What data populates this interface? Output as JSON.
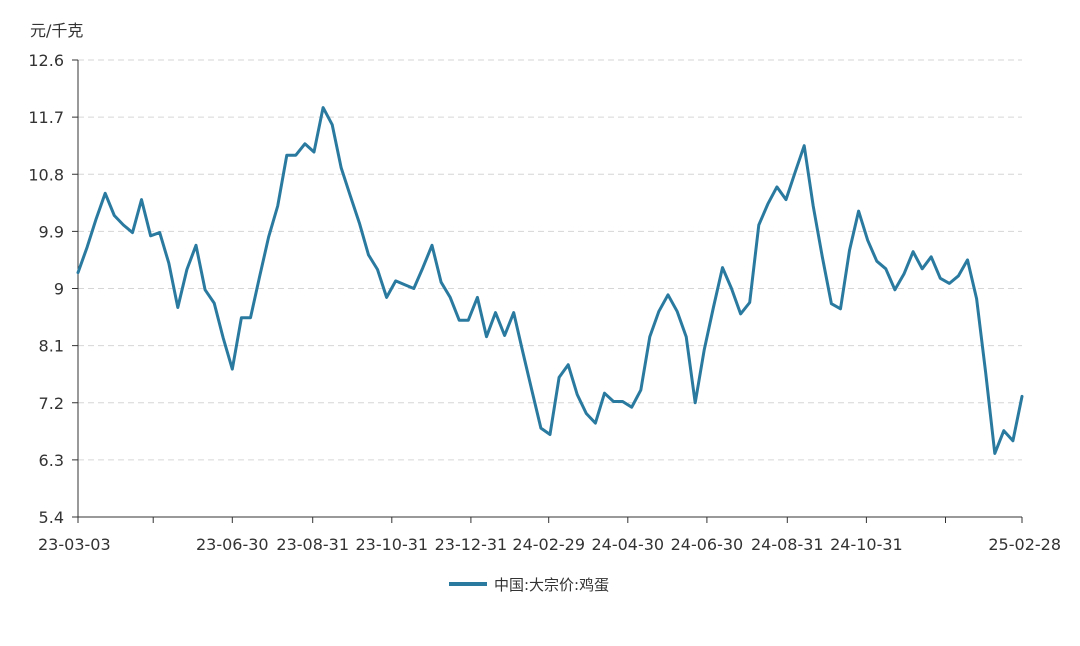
{
  "chart_data": {
    "type": "line",
    "unit_label": "元/千克",
    "y_ticks": [
      "12.6",
      "11.7",
      "10.8",
      "9.9",
      "9",
      "8.1",
      "7.2",
      "6.3",
      "5.4"
    ],
    "ylim": [
      5.4,
      12.6
    ],
    "x_range": [
      "2023-03-03",
      "2025-02-28"
    ],
    "x_tick_labels": [
      {
        "date": "2023-03-03",
        "label": "23-03-03"
      },
      {
        "date": "2023-06-30",
        "label": "23-06-30"
      },
      {
        "date": "2023-08-31",
        "label": "23-08-31"
      },
      {
        "date": "2023-10-31",
        "label": "23-10-31"
      },
      {
        "date": "2023-12-31",
        "label": "23-12-31"
      },
      {
        "date": "2024-02-29",
        "label": "24-02-29"
      },
      {
        "date": "2024-04-30",
        "label": "24-04-30"
      },
      {
        "date": "2024-06-30",
        "label": "24-06-30"
      },
      {
        "date": "2024-08-31",
        "label": "24-08-31"
      },
      {
        "date": "2024-10-31",
        "label": "24-10-31"
      },
      {
        "date": "2025-02-28",
        "label": "25-02-28"
      }
    ],
    "x_ticks_unlabeled": [
      "2023-04-30",
      "2024-12-31"
    ],
    "grid": true,
    "legend_position": "bottom-center",
    "series": [
      {
        "name": "中国:大宗价:鸡蛋",
        "color": "#2a7aa0",
        "x": [
          "2023-03-03",
          "2023-03-10",
          "2023-03-17",
          "2023-03-24",
          "2023-03-31",
          "2023-04-07",
          "2023-04-14",
          "2023-04-21",
          "2023-04-28",
          "2023-05-05",
          "2023-05-12",
          "2023-05-19",
          "2023-05-26",
          "2023-06-02",
          "2023-06-09",
          "2023-06-16",
          "2023-06-23",
          "2023-06-30",
          "2023-07-07",
          "2023-07-14",
          "2023-07-21",
          "2023-07-28",
          "2023-08-04",
          "2023-08-11",
          "2023-08-18",
          "2023-08-25",
          "2023-09-01",
          "2023-09-08",
          "2023-09-15",
          "2023-09-22",
          "2023-09-29",
          "2023-10-06",
          "2023-10-13",
          "2023-10-20",
          "2023-10-27",
          "2023-11-03",
          "2023-11-10",
          "2023-11-17",
          "2023-11-24",
          "2023-12-01",
          "2023-12-08",
          "2023-12-15",
          "2023-12-22",
          "2023-12-29",
          "2024-01-05",
          "2024-01-12",
          "2024-01-19",
          "2024-01-26",
          "2024-02-02",
          "2024-02-09",
          "2024-02-16",
          "2024-02-23",
          "2024-03-01",
          "2024-03-08",
          "2024-03-15",
          "2024-03-22",
          "2024-03-29",
          "2024-04-05",
          "2024-04-12",
          "2024-04-19",
          "2024-04-26",
          "2024-05-03",
          "2024-05-10",
          "2024-05-17",
          "2024-05-24",
          "2024-05-31",
          "2024-06-07",
          "2024-06-14",
          "2024-06-21",
          "2024-06-28",
          "2024-07-05",
          "2024-07-12",
          "2024-07-19",
          "2024-07-26",
          "2024-08-02",
          "2024-08-09",
          "2024-08-16",
          "2024-08-23",
          "2024-08-30",
          "2024-09-06",
          "2024-09-13",
          "2024-09-20",
          "2024-09-27",
          "2024-10-04",
          "2024-10-11",
          "2024-10-18",
          "2024-10-25",
          "2024-11-01",
          "2024-11-08",
          "2024-11-15",
          "2024-11-22",
          "2024-11-29",
          "2024-12-06",
          "2024-12-13",
          "2024-12-20",
          "2024-12-27",
          "2025-01-03",
          "2025-01-10",
          "2025-01-17",
          "2025-01-24",
          "2025-01-31",
          "2025-02-07",
          "2025-02-14",
          "2025-02-21",
          "2025-02-28"
        ],
        "values": [
          9.25,
          9.65,
          10.1,
          10.5,
          10.15,
          10.0,
          9.88,
          10.4,
          9.83,
          9.88,
          9.4,
          8.7,
          9.3,
          9.68,
          8.98,
          8.77,
          8.22,
          7.73,
          8.54,
          8.54,
          9.18,
          9.81,
          10.3,
          11.1,
          11.1,
          11.28,
          11.15,
          11.85,
          11.58,
          10.9,
          10.46,
          10.03,
          9.53,
          9.3,
          8.86,
          9.12,
          9.06,
          9.0,
          9.33,
          9.68,
          9.1,
          8.86,
          8.5,
          8.5,
          8.86,
          8.24,
          8.62,
          8.26,
          8.62,
          8.0,
          7.4,
          6.8,
          6.7,
          7.6,
          7.8,
          7.33,
          7.03,
          6.88,
          7.35,
          7.22,
          7.22,
          7.13,
          7.4,
          8.24,
          8.64,
          8.9,
          8.64,
          8.24,
          7.2,
          8.04,
          8.7,
          9.33,
          9.0,
          8.6,
          8.78,
          10.0,
          10.33,
          10.6,
          10.4,
          10.83,
          11.25,
          10.3,
          9.5,
          8.76,
          8.68,
          9.6,
          10.22,
          9.76,
          9.43,
          9.31,
          8.98,
          9.23,
          9.58,
          9.31,
          9.5,
          9.16,
          9.08,
          9.2,
          9.45,
          8.84,
          7.67,
          6.4,
          6.76,
          6.6,
          7.3
        ]
      }
    ]
  }
}
